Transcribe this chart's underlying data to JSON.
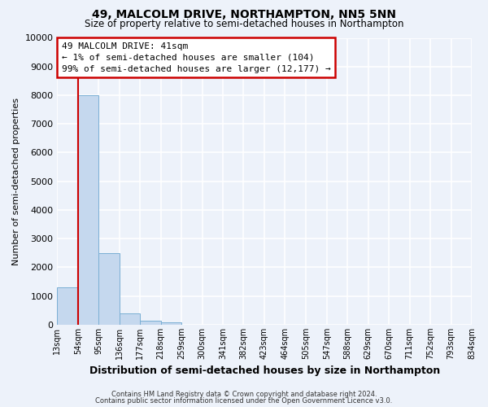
{
  "title": "49, MALCOLM DRIVE, NORTHAMPTON, NN5 5NN",
  "subtitle": "Size of property relative to semi-detached houses in Northampton",
  "bar_values": [
    1300,
    8000,
    2500,
    390,
    130,
    80,
    0,
    0,
    0,
    0,
    0,
    0,
    0,
    0,
    0,
    0,
    0,
    0,
    0,
    0
  ],
  "x_labels": [
    "13sqm",
    "54sqm",
    "95sqm",
    "136sqm",
    "177sqm",
    "218sqm",
    "259sqm",
    "300sqm",
    "341sqm",
    "382sqm",
    "423sqm",
    "464sqm",
    "505sqm",
    "547sqm",
    "588sqm",
    "629sqm",
    "670sqm",
    "711sqm",
    "752sqm",
    "793sqm",
    "834sqm"
  ],
  "bar_color": "#c5d8ee",
  "bar_edge_color": "#7aafd4",
  "property_line_color": "#cc0000",
  "annotation_title": "49 MALCOLM DRIVE: 41sqm",
  "annotation_line1": "← 1% of semi-detached houses are smaller (104)",
  "annotation_line2": "99% of semi-detached houses are larger (12,177) →",
  "annotation_box_edgecolor": "#cc0000",
  "annotation_box_facecolor": "#ffffff",
  "ylabel": "Number of semi-detached properties",
  "xlabel": "Distribution of semi-detached houses by size in Northampton",
  "ylim": [
    0,
    10000
  ],
  "yticks": [
    0,
    1000,
    2000,
    3000,
    4000,
    5000,
    6000,
    7000,
    8000,
    9000,
    10000
  ],
  "footnote1": "Contains HM Land Registry data © Crown copyright and database right 2024.",
  "footnote2": "Contains public sector information licensed under the Open Government Licence v3.0.",
  "background_color": "#edf2fa",
  "grid_color": "#ffffff"
}
